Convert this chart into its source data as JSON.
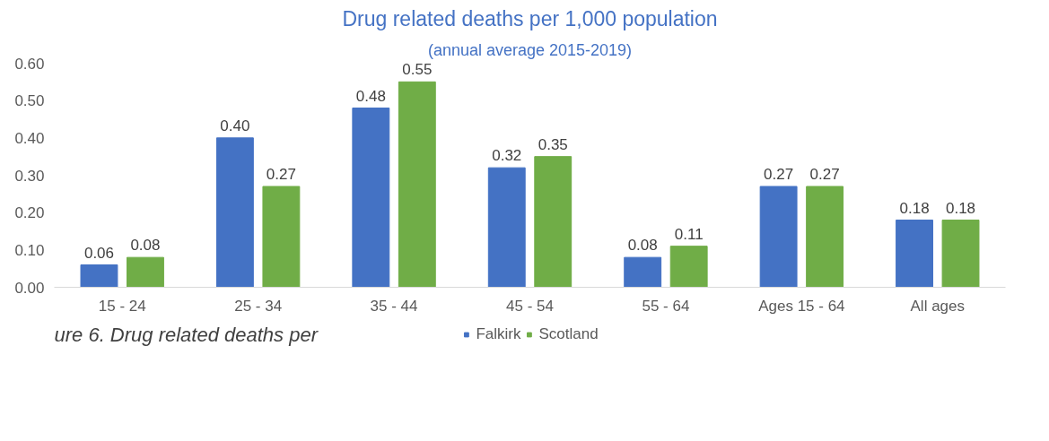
{
  "chart_data": {
    "type": "bar",
    "title": "Drug related deaths per 1,000 population",
    "subtitle": "(annual average 2015-2019)",
    "categories": [
      "15 - 24",
      "25 - 34",
      "35 - 44",
      "45 - 54",
      "55 - 64",
      "Ages 15 - 64",
      "All ages"
    ],
    "series": [
      {
        "name": "Falkirk",
        "color": "#4472c4",
        "values": [
          0.06,
          0.4,
          0.48,
          0.32,
          0.08,
          0.27,
          0.18
        ],
        "value_labels": [
          "0.06",
          "0.40",
          "0.48",
          "0.32",
          "0.08",
          "0.27",
          "0.18"
        ]
      },
      {
        "name": "Scotland",
        "color": "#70ad47",
        "values": [
          0.08,
          0.27,
          0.55,
          0.35,
          0.11,
          0.27,
          0.18
        ],
        "value_labels": [
          "0.08",
          "0.27",
          "0.55",
          "0.35",
          "0.11",
          "0.27",
          "0.18"
        ]
      }
    ],
    "ylim": [
      0,
      0.6
    ],
    "yticks": [
      {
        "value": 0,
        "label": "0.00"
      },
      {
        "value": 0.1,
        "label": "0.10"
      },
      {
        "value": 0.2,
        "label": "0.20"
      },
      {
        "value": 0.3,
        "label": "0.30"
      },
      {
        "value": 0.4,
        "label": "0.40"
      },
      {
        "value": 0.5,
        "label": "0.50"
      },
      {
        "value": 0.6,
        "label": "0.60"
      }
    ],
    "legend": "bottom",
    "grid": false,
    "annotations": [
      "ure 6. Drug related deaths per"
    ]
  }
}
